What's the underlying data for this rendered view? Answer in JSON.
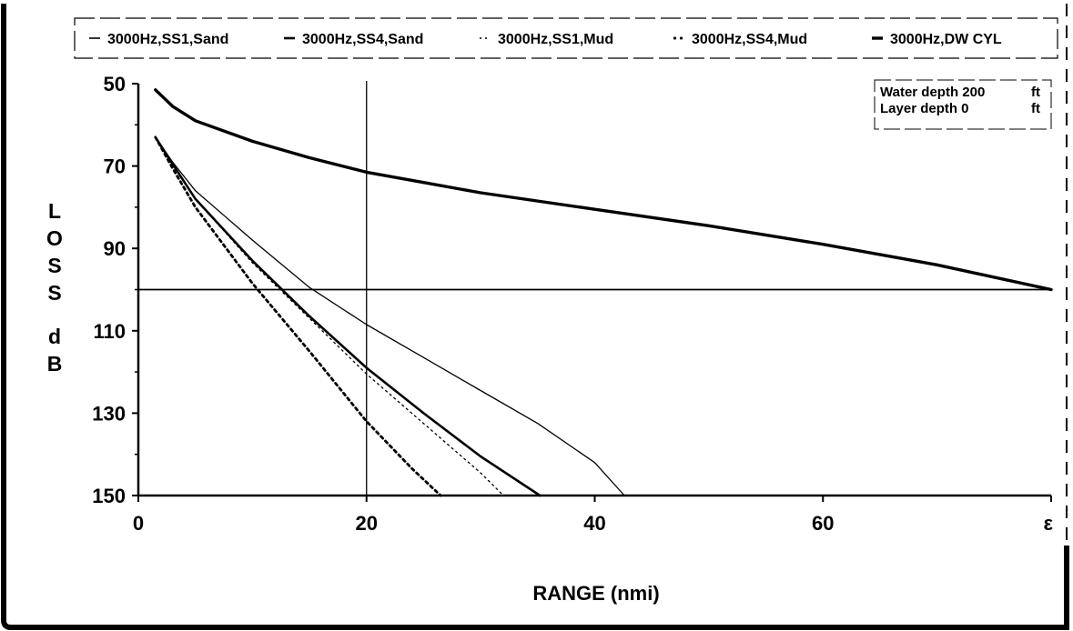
{
  "chart_data": {
    "type": "line",
    "xlabel": "RANGE (nmi)",
    "ylabel": "LOSS dB",
    "ylabel_letters": [
      "L",
      "O",
      "S",
      "S",
      "d",
      "B"
    ],
    "xlim": [
      0,
      80
    ],
    "ylim": [
      50,
      150
    ],
    "y_inverted": true,
    "x_ticks": [
      0,
      20,
      40,
      60,
      80
    ],
    "x_tick_labels": [
      "0",
      "20",
      "40",
      "60",
      "ε"
    ],
    "y_ticks": [
      50,
      70,
      90,
      110,
      130,
      150
    ],
    "y_tick_labels": [
      "50",
      "70",
      "90",
      "110",
      "130",
      "150"
    ],
    "grid": false,
    "legend_position": "top",
    "reference_lines": {
      "vertical_x": 20,
      "horizontal_y": 100
    },
    "info_box": {
      "line1_label": "Water depth 200",
      "line1_unit": "ft",
      "line2_label": "Layer depth 0",
      "line2_unit": "ft"
    },
    "series": [
      {
        "name": "3000Hz,SS1,Sand",
        "style": "solid-thin",
        "x": [
          1.5,
          3,
          5,
          10,
          15,
          20,
          25,
          30,
          35,
          40,
          42.6
        ],
        "y": [
          63,
          69,
          76,
          88,
          99.5,
          108.5,
          116.5,
          124.5,
          132.5,
          142,
          150
        ]
      },
      {
        "name": "3000Hz,SS4,Sand",
        "style": "solid-medium",
        "x": [
          1.5,
          3,
          5,
          10,
          15,
          20,
          25,
          30,
          35.2
        ],
        "y": [
          63,
          69.5,
          78,
          93,
          106.5,
          119,
          130,
          140.5,
          150
        ]
      },
      {
        "name": "3000Hz,SS1,Mud",
        "style": "dotted-thin",
        "x": [
          1.5,
          3,
          5,
          10,
          15,
          20,
          25,
          30,
          32
        ],
        "y": [
          63,
          69.5,
          78,
          93.5,
          107,
          120.5,
          132.5,
          144.5,
          150
        ]
      },
      {
        "name": "3000Hz,SS4,Mud",
        "style": "dotted-bold",
        "x": [
          1.5,
          3,
          5,
          10,
          15,
          20,
          24,
          26.5
        ],
        "y": [
          63,
          70.5,
          80,
          98.5,
          115,
          132,
          143.5,
          150
        ]
      },
      {
        "name": "3000Hz,DW CYL",
        "style": "solid-bold",
        "x": [
          1.5,
          3,
          5,
          10,
          15,
          20,
          25,
          30,
          40,
          50,
          60,
          70,
          80
        ],
        "y": [
          51.5,
          55.5,
          59,
          64,
          68,
          71.5,
          74,
          76.5,
          80.5,
          84.5,
          89,
          94,
          100
        ]
      }
    ]
  }
}
